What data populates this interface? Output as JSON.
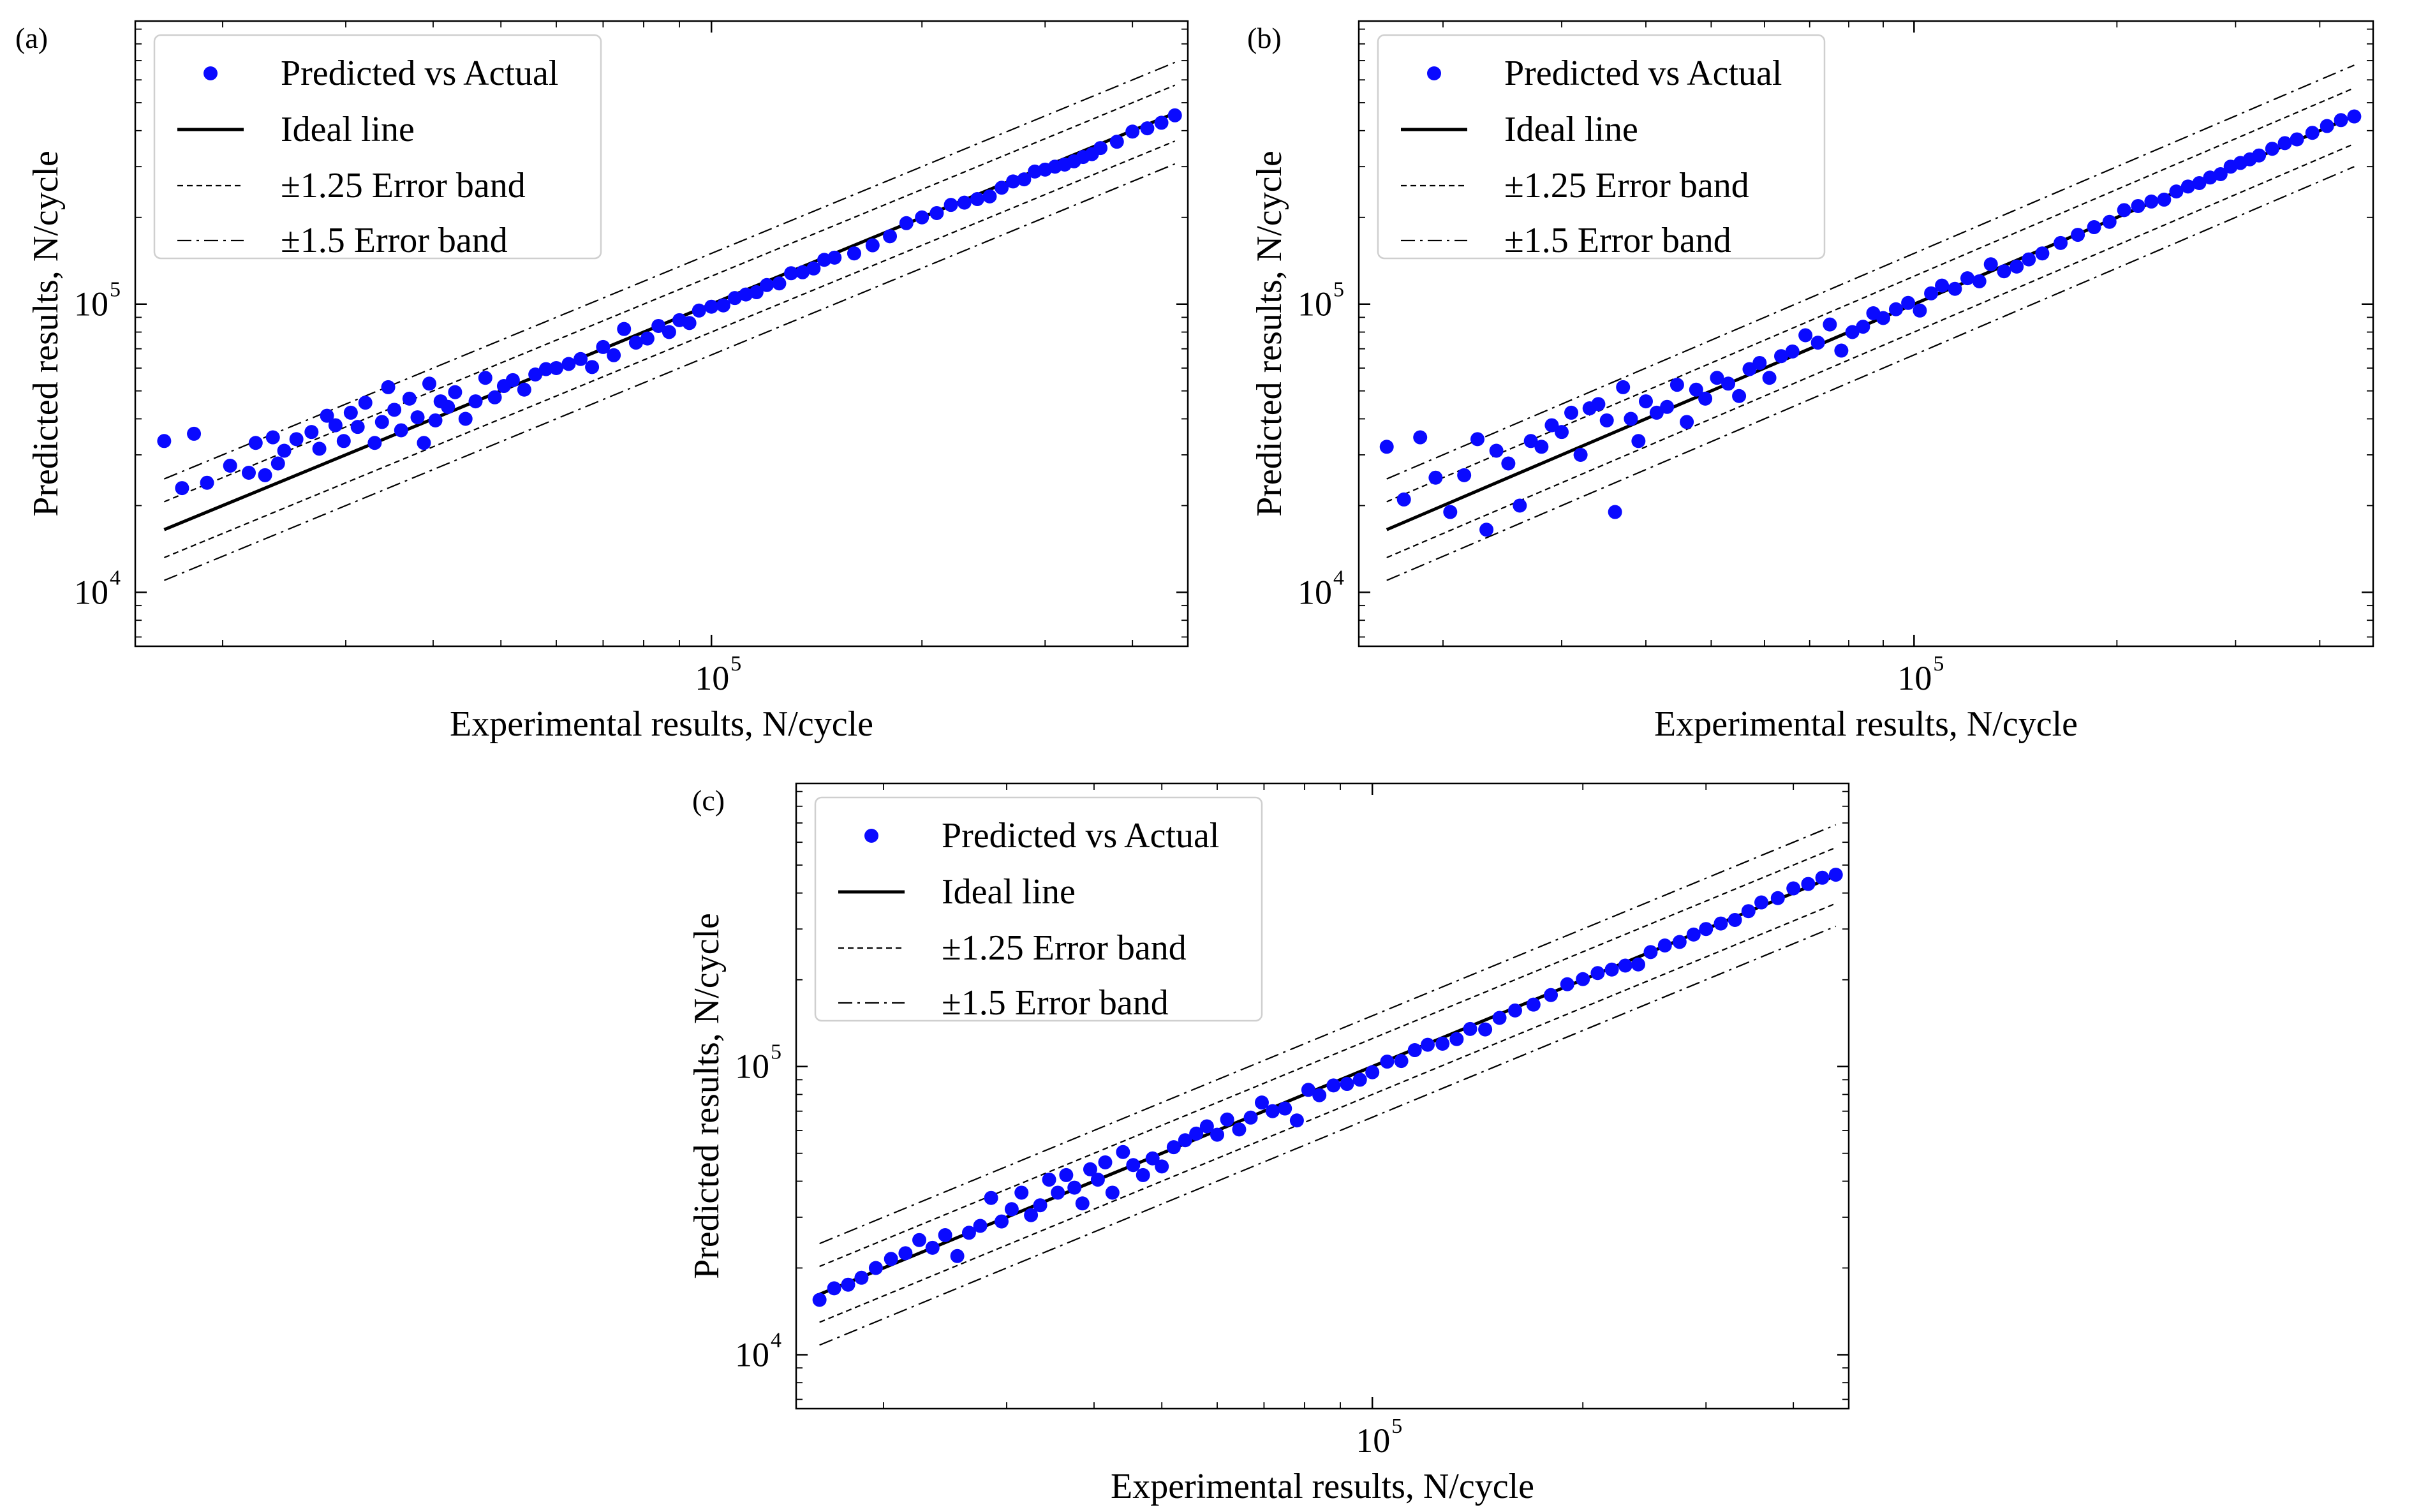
{
  "figure": {
    "x_axis_label": "Experimental results, N/cycle",
    "y_axis_label": "Predicted results, N/cycle",
    "legend": {
      "scatter": "Predicted vs Actual",
      "ideal": "Ideal line",
      "band125": "±1.25 Error band",
      "band15": "±1.5 Error band"
    },
    "colors": {
      "points": "#0a0aff",
      "lines": "#000000",
      "legend_border": "#cfcfcf"
    }
  },
  "chart_data": [
    {
      "panel_label": "(a)",
      "type": "scatter",
      "title": "",
      "xlabel": "Experimental results, N/cycle",
      "ylabel": "Predicted results, N/cycle",
      "xscale": "log",
      "yscale": "log",
      "xlim": [
        15000,
        480000
      ],
      "ylim": [
        6500,
        960000
      ],
      "x_ticks": [
        {
          "base": "10",
          "exp": "5",
          "value": 100000
        }
      ],
      "y_ticks": [
        {
          "base": "10",
          "exp": "4",
          "value": 10000
        },
        {
          "base": "10",
          "exp": "5",
          "value": 100000
        }
      ],
      "legend_position": "top-left",
      "series": [
        {
          "name": "Predicted vs Actual",
          "kind": "scatter",
          "x": [
            16500,
            17500,
            18200,
            19000,
            20500,
            21800,
            22300,
            23000,
            23600,
            24000,
            24500,
            25500,
            26800,
            27500,
            28200,
            29000,
            29800,
            30500,
            31200,
            32000,
            33000,
            33800,
            34500,
            35200,
            36000,
            37000,
            38000,
            38800,
            39500,
            40300,
            41000,
            42000,
            43000,
            44500,
            46000,
            47500,
            49000,
            50500,
            52000,
            54000,
            56000,
            58000,
            60000,
            62500,
            65000,
            67500,
            70000,
            72500,
            75000,
            78000,
            81000,
            84000,
            87000,
            90000,
            93000,
            96000,
            100000,
            104000,
            108000,
            112000,
            116000,
            120000,
            125000,
            130000,
            135000,
            140000,
            145000,
            150000,
            160000,
            170000,
            180000,
            190000,
            200000,
            210000,
            220000,
            230000,
            240000,
            250000,
            260000,
            270000,
            280000,
            290000,
            300000,
            310000,
            320000,
            330000,
            340000,
            350000,
            360000,
            380000,
            400000,
            420000,
            440000,
            460000
          ],
          "y": [
            33500,
            23000,
            35500,
            24000,
            27500,
            26000,
            33000,
            25500,
            34500,
            28000,
            31000,
            34000,
            36000,
            31500,
            41000,
            38000,
            33500,
            42000,
            37500,
            45500,
            33000,
            39000,
            51500,
            43000,
            36500,
            47000,
            40500,
            33000,
            53000,
            39500,
            46000,
            44000,
            49500,
            40000,
            46000,
            55500,
            47500,
            52000,
            54500,
            50500,
            57000,
            59500,
            60000,
            62000,
            64500,
            60500,
            71000,
            66500,
            82000,
            73500,
            76000,
            84000,
            80000,
            88000,
            86000,
            95000,
            98000,
            99000,
            105000,
            108000,
            110000,
            116500,
            118000,
            128000,
            129000,
            133000,
            142500,
            145000,
            150000,
            160000,
            172000,
            191000,
            200000,
            207000,
            221000,
            225000,
            231500,
            236500,
            253500,
            266500,
            271000,
            288500,
            293000,
            300000,
            305000,
            313000,
            324000,
            331500,
            348000,
            366000,
            397000,
            407500,
            426000,
            452000
          ]
        }
      ]
    },
    {
      "panel_label": "(b)",
      "type": "scatter",
      "title": "",
      "xlabel": "Experimental results, N/cycle",
      "ylabel": "Predicted results, N/cycle",
      "xscale": "log",
      "yscale": "log",
      "xlim": [
        15000,
        480000
      ],
      "ylim": [
        6500,
        960000
      ],
      "x_ticks": [
        {
          "base": "10",
          "exp": "5",
          "value": 100000
        }
      ],
      "y_ticks": [
        {
          "base": "10",
          "exp": "4",
          "value": 10000
        },
        {
          "base": "10",
          "exp": "5",
          "value": 100000
        }
      ],
      "legend_position": "top-left",
      "series": [
        {
          "name": "Predicted vs Actual",
          "kind": "scatter",
          "x": [
            16500,
            17500,
            18500,
            19500,
            20500,
            21500,
            22500,
            23200,
            24000,
            25000,
            26000,
            27000,
            28000,
            29000,
            30000,
            31000,
            32000,
            33000,
            34000,
            35000,
            36000,
            37000,
            38000,
            39000,
            40000,
            41500,
            43000,
            44500,
            46000,
            47500,
            49000,
            51000,
            53000,
            55000,
            57000,
            59000,
            61000,
            63500,
            66000,
            69000,
            72000,
            75000,
            78000,
            81000,
            84000,
            87000,
            90000,
            94000,
            98000,
            102000,
            106000,
            110000,
            115000,
            120000,
            125000,
            130000,
            136000,
            142000,
            148000,
            155000,
            165000,
            175000,
            185000,
            195000,
            205000,
            215000,
            225000,
            235000,
            245000,
            255000,
            265000,
            275000,
            285000,
            295000,
            305000,
            315000,
            325000,
            340000,
            355000,
            370000,
            390000,
            410000,
            430000,
            450000
          ],
          "y": [
            32000,
            21000,
            34500,
            25000,
            19000,
            25500,
            34000,
            16500,
            31000,
            28000,
            20000,
            33500,
            32000,
            38000,
            36000,
            42000,
            30000,
            43500,
            45000,
            39500,
            19000,
            51500,
            40000,
            33500,
            46000,
            42000,
            44000,
            52500,
            39000,
            50500,
            47000,
            55500,
            53000,
            48000,
            59500,
            62500,
            55500,
            66000,
            68500,
            78000,
            73500,
            85000,
            69000,
            80000,
            83500,
            93000,
            89500,
            96000,
            101000,
            95000,
            109000,
            116000,
            113000,
            123000,
            120000,
            137500,
            130000,
            135000,
            143000,
            150000,
            163000,
            174000,
            185000,
            193000,
            212000,
            219000,
            227000,
            230500,
            246000,
            256000,
            263000,
            275000,
            282500,
            300000,
            309000,
            318000,
            328000,
            346000,
            362000,
            373000,
            393000,
            415000,
            435000,
            448000
          ]
        }
      ]
    },
    {
      "panel_label": "(c)",
      "type": "scatter",
      "title": "",
      "xlabel": "Experimental results, N/cycle",
      "ylabel": "Predicted results, N/cycle",
      "xscale": "log",
      "yscale": "log",
      "xlim": [
        15000,
        480000
      ],
      "ylim": [
        6500,
        960000
      ],
      "x_ticks": [
        {
          "base": "10",
          "exp": "5",
          "value": 100000
        }
      ],
      "y_ticks": [
        {
          "base": "10",
          "exp": "4",
          "value": 10000
        },
        {
          "base": "10",
          "exp": "5",
          "value": 100000
        }
      ],
      "legend_position": "top-left",
      "series": [
        {
          "name": "Predicted vs Actual",
          "kind": "scatter",
          "x": [
            16200,
            17000,
            17800,
            18600,
            19500,
            20500,
            21500,
            22500,
            23500,
            24500,
            25500,
            26500,
            27500,
            28500,
            29500,
            30500,
            31500,
            32500,
            33500,
            34500,
            35500,
            36500,
            37500,
            38500,
            39500,
            40500,
            41500,
            42500,
            44000,
            45500,
            47000,
            48500,
            50000,
            52000,
            54000,
            56000,
            58000,
            60000,
            62000,
            64500,
            67000,
            69500,
            72000,
            75000,
            78000,
            81000,
            84000,
            88000,
            92000,
            96000,
            100000,
            105000,
            110000,
            115000,
            120000,
            126000,
            132000,
            138000,
            145000,
            152000,
            160000,
            170000,
            180000,
            190000,
            200000,
            210000,
            220000,
            230000,
            240000,
            250000,
            262000,
            275000,
            288000,
            300000,
            315000,
            330000,
            345000,
            360000,
            380000,
            400000,
            420000,
            440000,
            460000
          ],
          "y": [
            15500,
            17000,
            17500,
            18500,
            20000,
            21500,
            22500,
            25000,
            23500,
            26000,
            22000,
            26500,
            28000,
            35000,
            29000,
            32000,
            36500,
            30500,
            33000,
            40500,
            36500,
            42000,
            38000,
            33500,
            44000,
            40500,
            46500,
            36500,
            50500,
            45500,
            42000,
            48000,
            45000,
            52500,
            55500,
            58500,
            62000,
            58000,
            65500,
            60500,
            66500,
            75000,
            70000,
            71500,
            65000,
            83000,
            79500,
            86000,
            87000,
            90000,
            95500,
            104000,
            104500,
            114000,
            119000,
            120000,
            124500,
            135000,
            134500,
            147500,
            156500,
            164000,
            177000,
            193000,
            201000,
            211000,
            217000,
            224000,
            226000,
            249500,
            263000,
            270500,
            287000,
            300000,
            313500,
            322500,
            346000,
            371000,
            384000,
            415000,
            430000,
            452000,
            463000
          ]
        }
      ]
    }
  ]
}
